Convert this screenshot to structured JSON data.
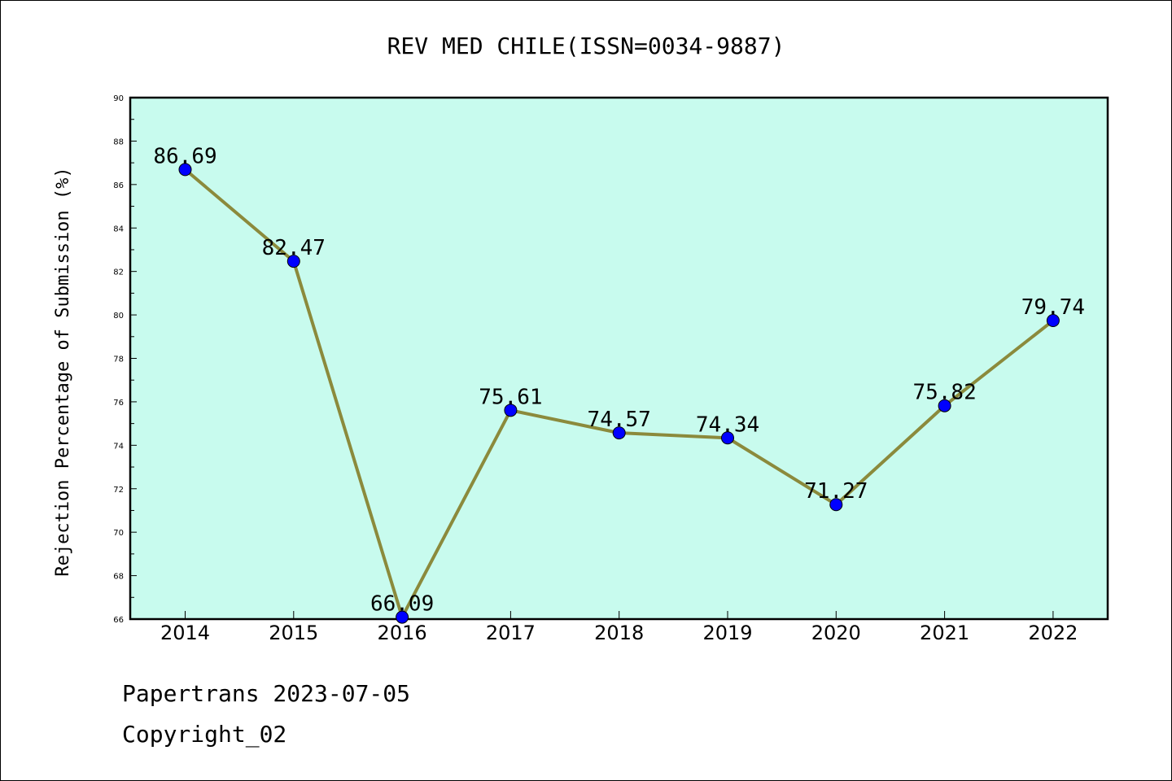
{
  "chart_data": {
    "type": "line",
    "title": "REV MED CHILE(ISSN=0034-9887)",
    "xlabel": "",
    "ylabel": "Rejection Percentage of Submission (%)",
    "categories": [
      "2014",
      "2015",
      "2016",
      "2017",
      "2018",
      "2019",
      "2020",
      "2021",
      "2022"
    ],
    "series": [
      {
        "values": [
          86.69,
          82.47,
          66.09,
          75.61,
          74.57,
          74.34,
          71.27,
          75.82,
          79.74
        ],
        "data_labels": [
          "86.69",
          "82.47",
          "66.09",
          "75.61",
          "74.57",
          "74.34",
          "71.27",
          "75.82",
          "79.74"
        ]
      }
    ],
    "ylim": [
      66,
      90
    ],
    "y_ticks": [
      "66",
      "68",
      "70",
      "72",
      "74",
      "76",
      "78",
      "80",
      "82",
      "84",
      "86",
      "88",
      "90"
    ],
    "grid": false,
    "legend": "none",
    "colors": {
      "plot_background": "#c8fbee",
      "line": "#8b8a3c",
      "marker": "#0000ff",
      "axis": "#000000"
    }
  },
  "footer": {
    "source_line": "Papertrans 2023-07-05",
    "copyright_line": "Copyright_02"
  }
}
